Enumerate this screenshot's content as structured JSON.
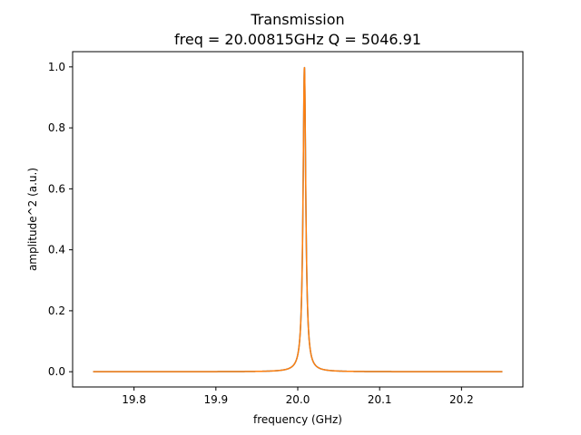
{
  "chart_data": {
    "type": "line",
    "title": "Transmission",
    "subtitle": "freq = 20.00815GHz Q = 5046.91",
    "xlabel": "frequency (GHz)",
    "ylabel": "amplitude^2 (a.u.)",
    "xlim": [
      19.725,
      20.275
    ],
    "ylim": [
      -0.05,
      1.05
    ],
    "xticks": [
      "19.8",
      "19.9",
      "20.0",
      "20.1",
      "20.2"
    ],
    "xtick_values": [
      19.8,
      19.9,
      20.0,
      20.1,
      20.2
    ],
    "yticks": [
      "0.0",
      "0.2",
      "0.4",
      "0.6",
      "0.8",
      "1.0"
    ],
    "ytick_values": [
      0.0,
      0.2,
      0.4,
      0.6,
      0.8,
      1.0
    ],
    "grid": false,
    "legend": "none",
    "series": [
      {
        "color": "#1f77b4",
        "center": 20.00815,
        "q": 5046.91,
        "x_range": [
          19.75,
          20.25
        ]
      },
      {
        "color": "#ff7f0e",
        "center": 20.00815,
        "q": 5046.91,
        "x_range": [
          19.75,
          20.25
        ]
      }
    ]
  }
}
